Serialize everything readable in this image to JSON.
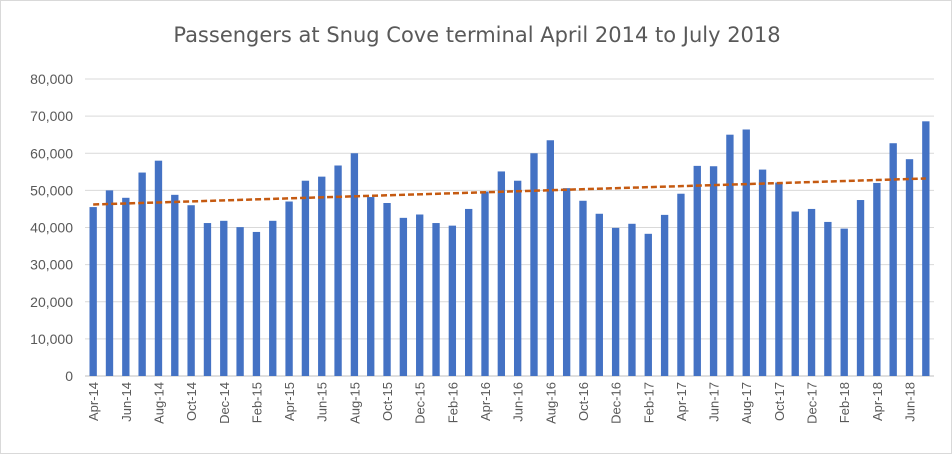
{
  "chart_data": {
    "type": "bar",
    "title": "Passengers at Snug Cove terminal April 2014 to July 2018",
    "xlabel": "",
    "ylabel": "",
    "ylim": [
      0,
      80000
    ],
    "yticks": [
      "0",
      "10,000",
      "20,000",
      "30,000",
      "40,000",
      "50,000",
      "60,000",
      "70,000",
      "80,000"
    ],
    "grid": true,
    "legend": "none",
    "categories": [
      "Apr-14",
      "May-14",
      "Jun-14",
      "Jul-14",
      "Aug-14",
      "Sep-14",
      "Oct-14",
      "Nov-14",
      "Dec-14",
      "Jan-15",
      "Feb-15",
      "Mar-15",
      "Apr-15",
      "May-15",
      "Jun-15",
      "Jul-15",
      "Aug-15",
      "Sep-15",
      "Oct-15",
      "Nov-15",
      "Dec-15",
      "Jan-16",
      "Feb-16",
      "Mar-16",
      "Apr-16",
      "May-16",
      "Jun-16",
      "Jul-16",
      "Aug-16",
      "Sep-16",
      "Oct-16",
      "Nov-16",
      "Dec-16",
      "Jan-17",
      "Feb-17",
      "Mar-17",
      "Apr-17",
      "May-17",
      "Jun-17",
      "Jul-17",
      "Aug-17",
      "Sep-17",
      "Oct-17",
      "Nov-17",
      "Dec-17",
      "Jan-18",
      "Feb-18",
      "Mar-18",
      "Apr-18",
      "May-18",
      "Jun-18",
      "Jul-18"
    ],
    "visible_xtick_labels": [
      "Apr-14",
      "Jun-14",
      "Aug-14",
      "Oct-14",
      "Dec-14",
      "Feb-15",
      "Apr-15",
      "Jun-15",
      "Aug-15",
      "Oct-15",
      "Dec-15",
      "Feb-16",
      "Apr-16",
      "Jun-16",
      "Aug-16",
      "Oct-16",
      "Dec-16",
      "Feb-17",
      "Apr-17",
      "Jun-17",
      "Aug-17",
      "Oct-17",
      "Dec-17",
      "Feb-18",
      "Apr-18",
      "Jun-18"
    ],
    "series": [
      {
        "values": [
          45500,
          50000,
          48000,
          54800,
          58000,
          48800,
          46000,
          41200,
          41800,
          40100,
          38800,
          41800,
          47000,
          52600,
          53700,
          56700,
          60000,
          48200,
          46600,
          42600,
          43500,
          41200,
          40500,
          45000,
          49700,
          55100,
          52600,
          60000,
          63500,
          50600,
          47200,
          43700,
          39900,
          41000,
          38300,
          43400,
          49100,
          56600,
          56500,
          65000,
          66400,
          55600,
          52100,
          44300,
          45000,
          41500,
          39700,
          47400,
          52000,
          62700,
          58400,
          68600
        ],
        "color": "#4472C4"
      }
    ],
    "trendline": {
      "type": "linear",
      "start": 46200,
      "end": 53200,
      "color": "#C55A11",
      "style": "dashed"
    }
  }
}
